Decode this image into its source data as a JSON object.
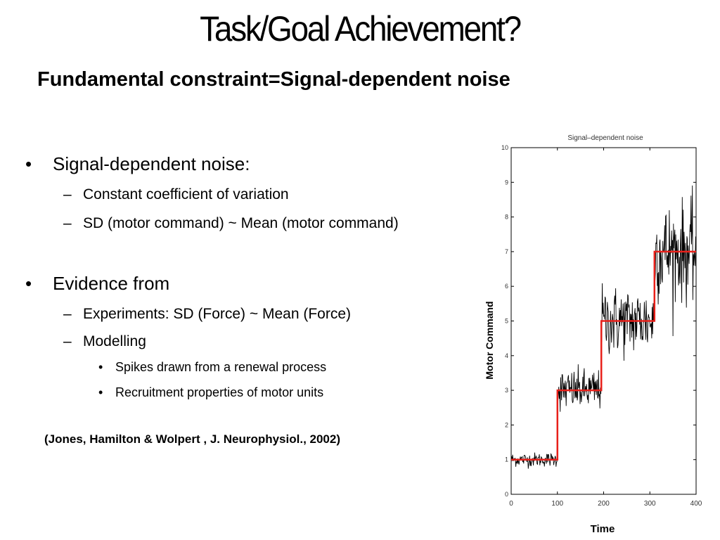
{
  "slide": {
    "title": "Task/Goal Achievement?",
    "subtitle": "Fundamental constraint=Signal-dependent noise",
    "bullets": [
      {
        "text": "Signal-dependent noise:",
        "level": 1
      },
      {
        "text": "Constant coefficient of variation",
        "level": 2
      },
      {
        "text": "SD (motor command) ~ Mean (motor command)",
        "level": 2
      },
      {
        "text": "Evidence from",
        "level": 1
      },
      {
        "text": "Experiments: SD (Force) ~ Mean (Force)",
        "level": 2
      },
      {
        "text": "Modelling",
        "level": 2
      },
      {
        "text": "Spikes drawn from a renewal process",
        "level": 3
      },
      {
        "text": "Recruitment properties of motor units",
        "level": 3
      }
    ],
    "markers": {
      "level1": "•",
      "level2": "–",
      "level3": "•"
    },
    "citation": "(Jones, Hamilton & Wolpert , J. Neurophysiol., 2002)"
  },
  "chart_data": {
    "type": "line",
    "title": "Signal–dependent noise",
    "xlabel": "Time",
    "ylabel": "Motor Command",
    "xlim": [
      0,
      400
    ],
    "ylim": [
      0,
      10
    ],
    "xticks": [
      0,
      100,
      200,
      300,
      400
    ],
    "yticks": [
      0,
      1,
      2,
      3,
      4,
      5,
      6,
      7,
      8,
      9,
      10
    ],
    "grid": false,
    "series": [
      {
        "style": "step",
        "color": "#e8201a",
        "x": [
          0,
          100,
          100,
          195,
          195,
          310,
          310,
          400
        ],
        "y": [
          1,
          1,
          3,
          3,
          5,
          5,
          7,
          7
        ]
      },
      {
        "style": "noisy",
        "color": "#000000",
        "segments": [
          {
            "x_start": 0,
            "x_end": 100,
            "mean": 1,
            "sd": 0.1
          },
          {
            "x_start": 100,
            "x_end": 195,
            "mean": 3,
            "sd": 0.3
          },
          {
            "x_start": 195,
            "x_end": 310,
            "mean": 5,
            "sd": 0.5
          },
          {
            "x_start": 310,
            "x_end": 400,
            "mean": 7,
            "sd": 0.7
          }
        ]
      }
    ]
  }
}
